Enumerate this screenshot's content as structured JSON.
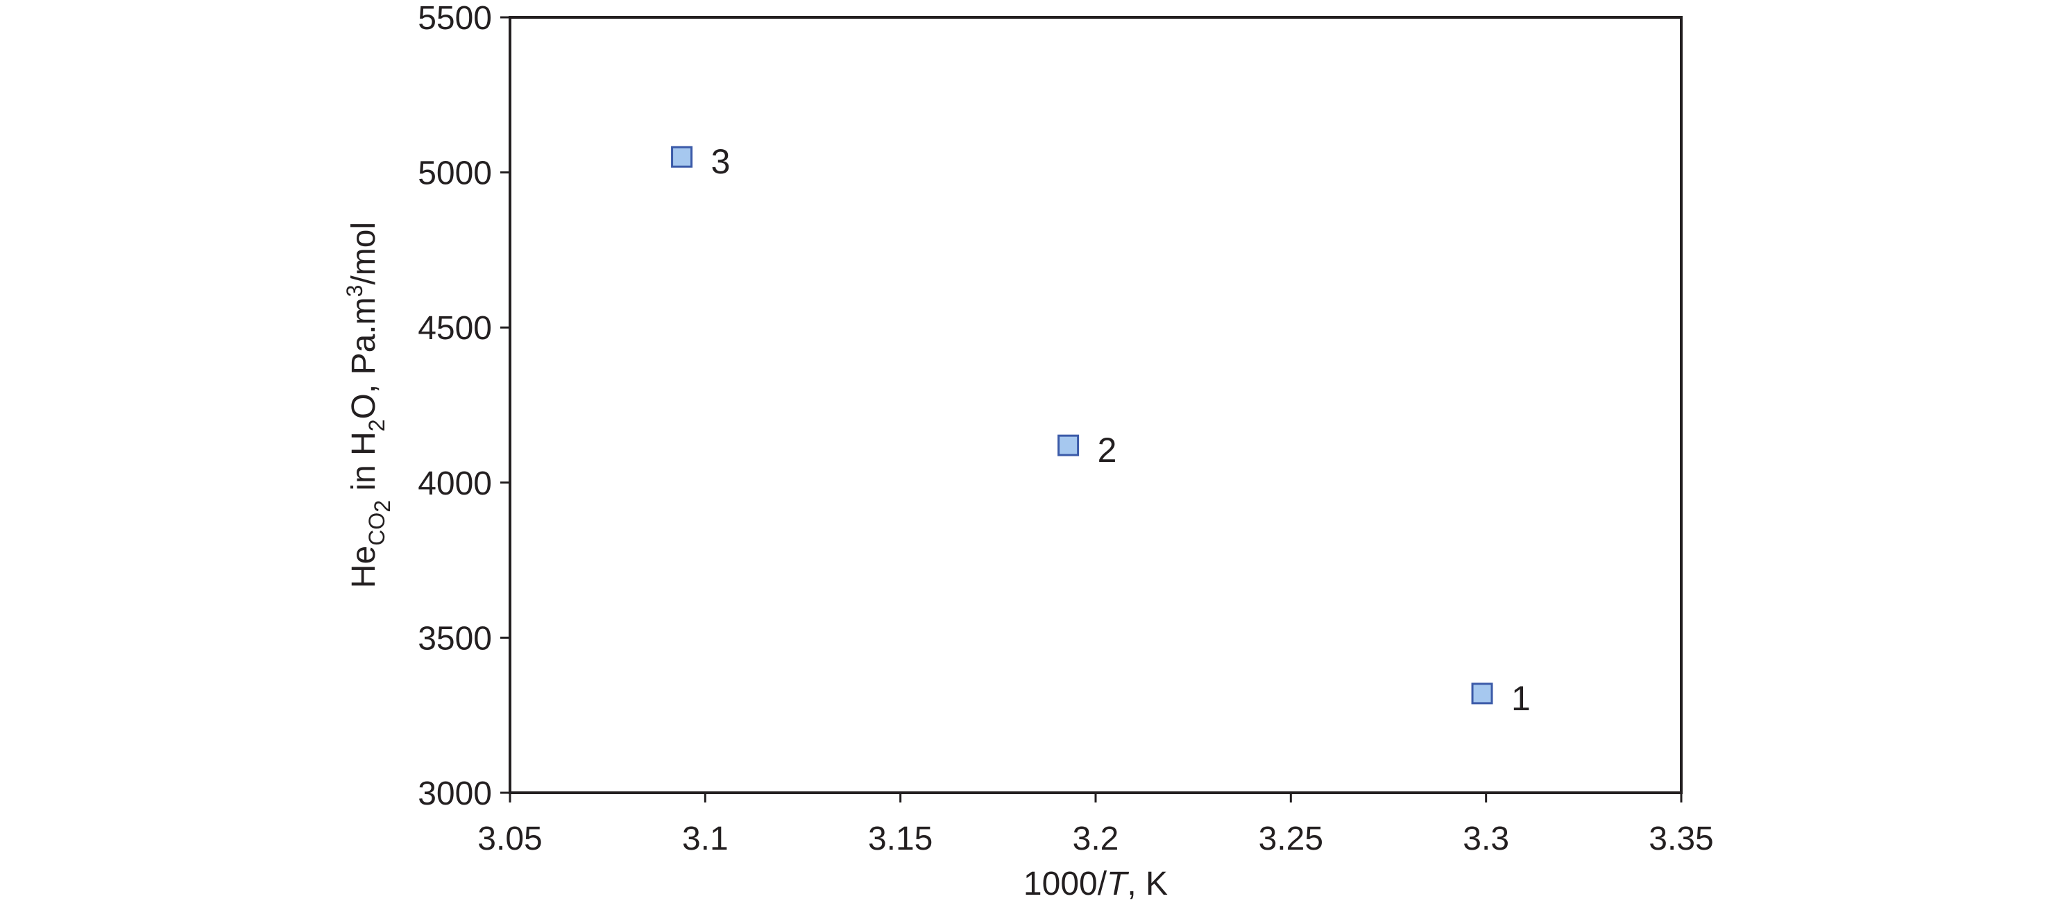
{
  "chart_data": {
    "type": "scatter",
    "title": "",
    "xlabel": {
      "prefix": "1000/",
      "italic": "T",
      "suffix": ", K"
    },
    "ylabel": {
      "part1": "He",
      "sub1": "CO",
      "sub1b": "2",
      "part2": " in H",
      "sub2": "2",
      "part3": "O, Pa.m",
      "sup": "3",
      "part4": "/mol"
    },
    "xlim": [
      3.05,
      3.35
    ],
    "ylim": [
      3000,
      5500
    ],
    "xticks": [
      3.05,
      3.1,
      3.15,
      3.2,
      3.25,
      3.3,
      3.35
    ],
    "xtick_labels": [
      "3.05",
      "3.1",
      "3.15",
      "3.2",
      "3.25",
      "3.3",
      "3.35"
    ],
    "yticks": [
      3000,
      3500,
      4000,
      4500,
      5000,
      5500
    ],
    "ytick_labels": [
      "3000",
      "3500",
      "4000",
      "4500",
      "5000",
      "5500"
    ],
    "grid": false,
    "series": [
      {
        "marker": "square",
        "color": "#a6c8ef",
        "edge_color": "#3b5aa8",
        "points": [
          {
            "x": 3.299,
            "y": 3320,
            "label": "1"
          },
          {
            "x": 3.193,
            "y": 4120,
            "label": "2"
          },
          {
            "x": 3.094,
            "y": 5050,
            "label": "3"
          }
        ]
      }
    ],
    "colors": {
      "axis": "#231f20",
      "text": "#231f20"
    }
  }
}
